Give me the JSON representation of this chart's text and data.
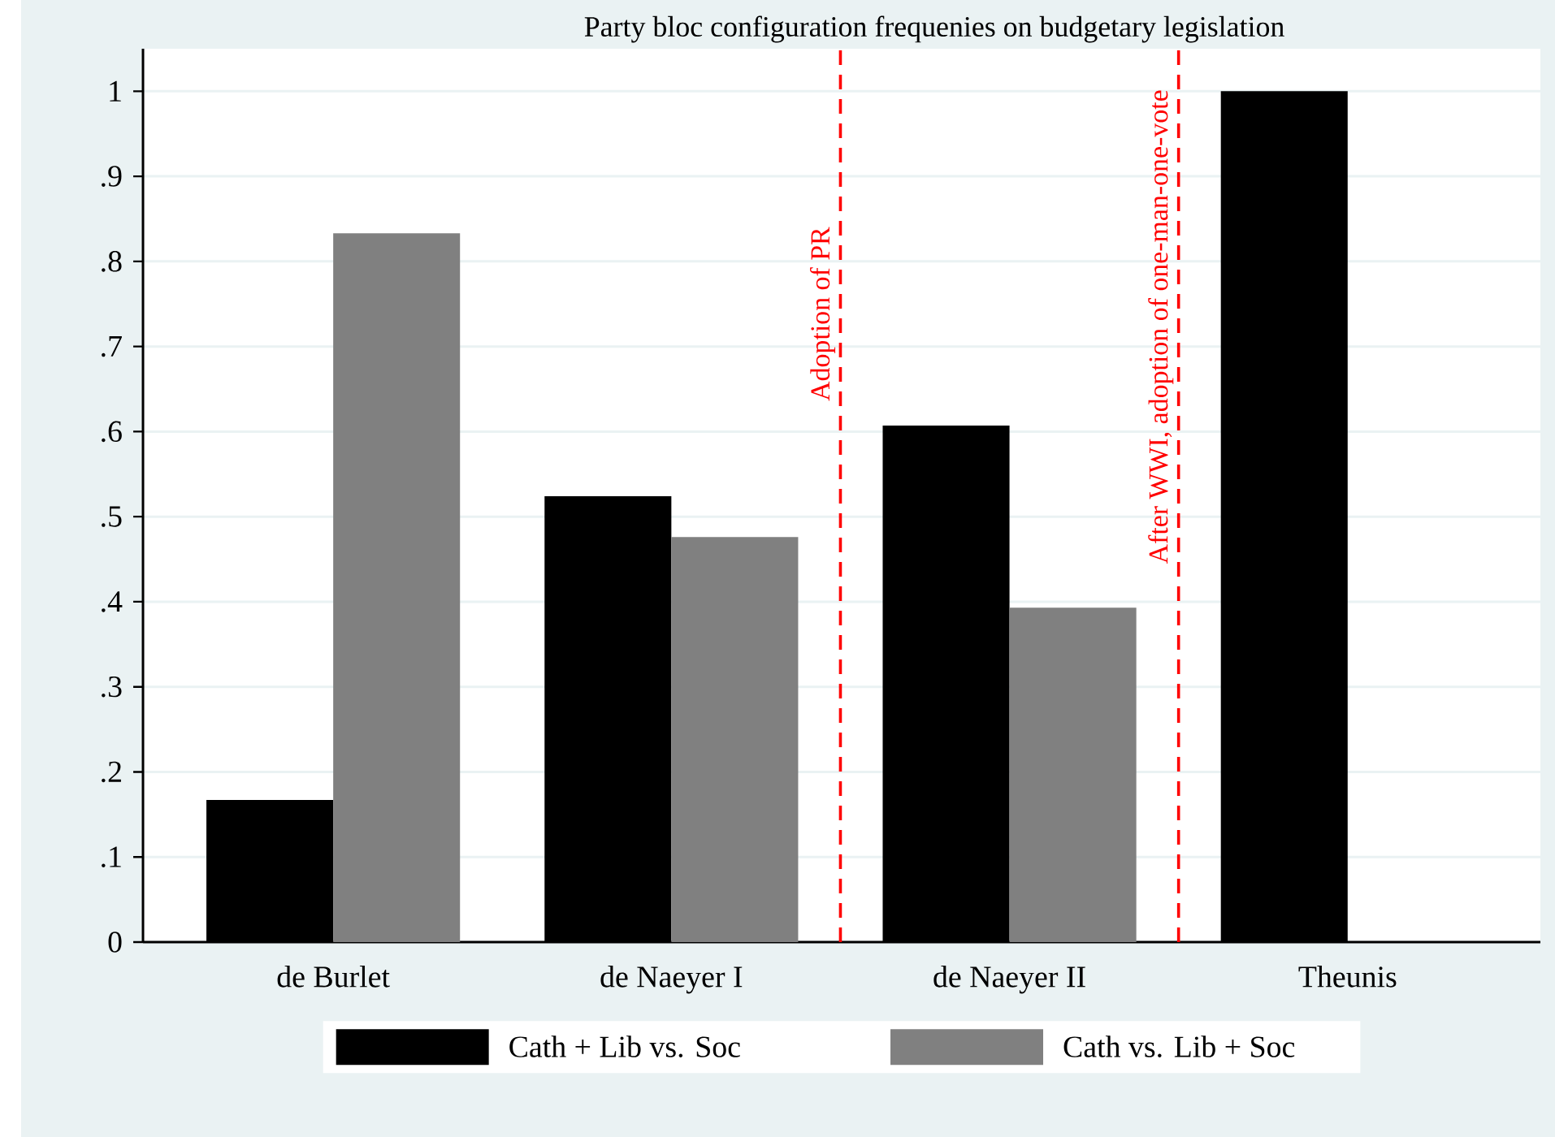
{
  "chart_data": {
    "type": "bar",
    "title": "Party bloc configuration frequenies on budgetary legislation",
    "categories": [
      "de Burlet",
      "de Naeyer I",
      "de Naeyer II",
      "Theunis"
    ],
    "series": [
      {
        "name": "Cath + Lib vs. Soc",
        "color": "#000000",
        "values": [
          0.167,
          0.524,
          0.607,
          1.0
        ]
      },
      {
        "name": "Cath vs. Lib + Soc",
        "color": "#808080",
        "values": [
          0.833,
          0.476,
          0.393,
          0
        ]
      }
    ],
    "ylim": [
      0,
      1.05
    ],
    "yticks": [
      0,
      {
        "value": 0.1,
        "label": ".1"
      },
      {
        "value": 0.2,
        "label": ".2"
      },
      {
        "value": 0.3,
        "label": ".3"
      },
      {
        "value": 0.4,
        "label": ".4"
      },
      {
        "value": 0.5,
        "label": ".5"
      },
      {
        "value": 0.6,
        "label": ".6"
      },
      {
        "value": 0.7,
        "label": ".7"
      },
      {
        "value": 0.8,
        "label": ".8"
      },
      {
        "value": 0.9,
        "label": ".9"
      },
      1
    ],
    "annotations": [
      "Adoption of PR",
      "After WWI, adoption of one-man-one-vote"
    ],
    "grid": "y",
    "legend": "bottom"
  }
}
